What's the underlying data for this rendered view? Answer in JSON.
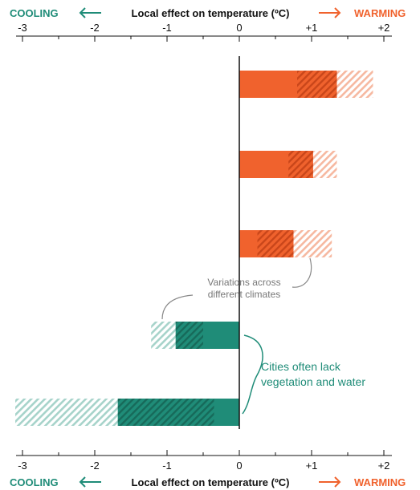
{
  "header": {
    "cooling": "COOLING",
    "warming": "WARMING",
    "axis_title": "Local effect on temperature (ºC)"
  },
  "annotations": {
    "variations_line1": "Variations across",
    "variations_line2": "different climates",
    "cities_line1": "Cities often lack",
    "cities_line2": "vegetation and water"
  },
  "colors": {
    "warm": "#f0622d",
    "warm_dark": "#c9461a",
    "warm_light": "#f6b8a0",
    "cool": "#1f8c78",
    "cool_dark": "#176a5a",
    "cool_light": "#a6d3ca"
  },
  "chart_data": {
    "type": "bar",
    "orientation": "horizontal",
    "xlim": [
      -3,
      2
    ],
    "tick_labels": [
      "-3",
      "-2",
      "-1",
      "0",
      "+1",
      "+2"
    ],
    "tick_values": [
      -3,
      -2,
      -1,
      0,
      1,
      2
    ],
    "bars": [
      {
        "range_low": 0,
        "range_high": 1.85,
        "core_low": 0,
        "core_high": 1.35,
        "dark_low": 0.8,
        "dark_high": 1.35,
        "sign": "warming"
      },
      {
        "range_low": 0,
        "range_high": 1.35,
        "core_low": 0,
        "core_high": 1.02,
        "dark_low": 0.68,
        "dark_high": 1.02,
        "sign": "warming"
      },
      {
        "range_low": 0,
        "range_high": 1.28,
        "core_low": 0,
        "core_high": 0.75,
        "dark_low": 0.25,
        "dark_high": 0.75,
        "sign": "warming"
      },
      {
        "range_low": -1.22,
        "range_high": 0,
        "core_low": -0.88,
        "core_high": 0,
        "dark_low": -0.88,
        "dark_high": -0.5,
        "sign": "cooling"
      },
      {
        "range_low": -3.1,
        "range_high": 0,
        "core_low": -1.68,
        "core_high": 0,
        "dark_low": -1.68,
        "dark_high": -0.35,
        "sign": "cooling"
      }
    ]
  }
}
